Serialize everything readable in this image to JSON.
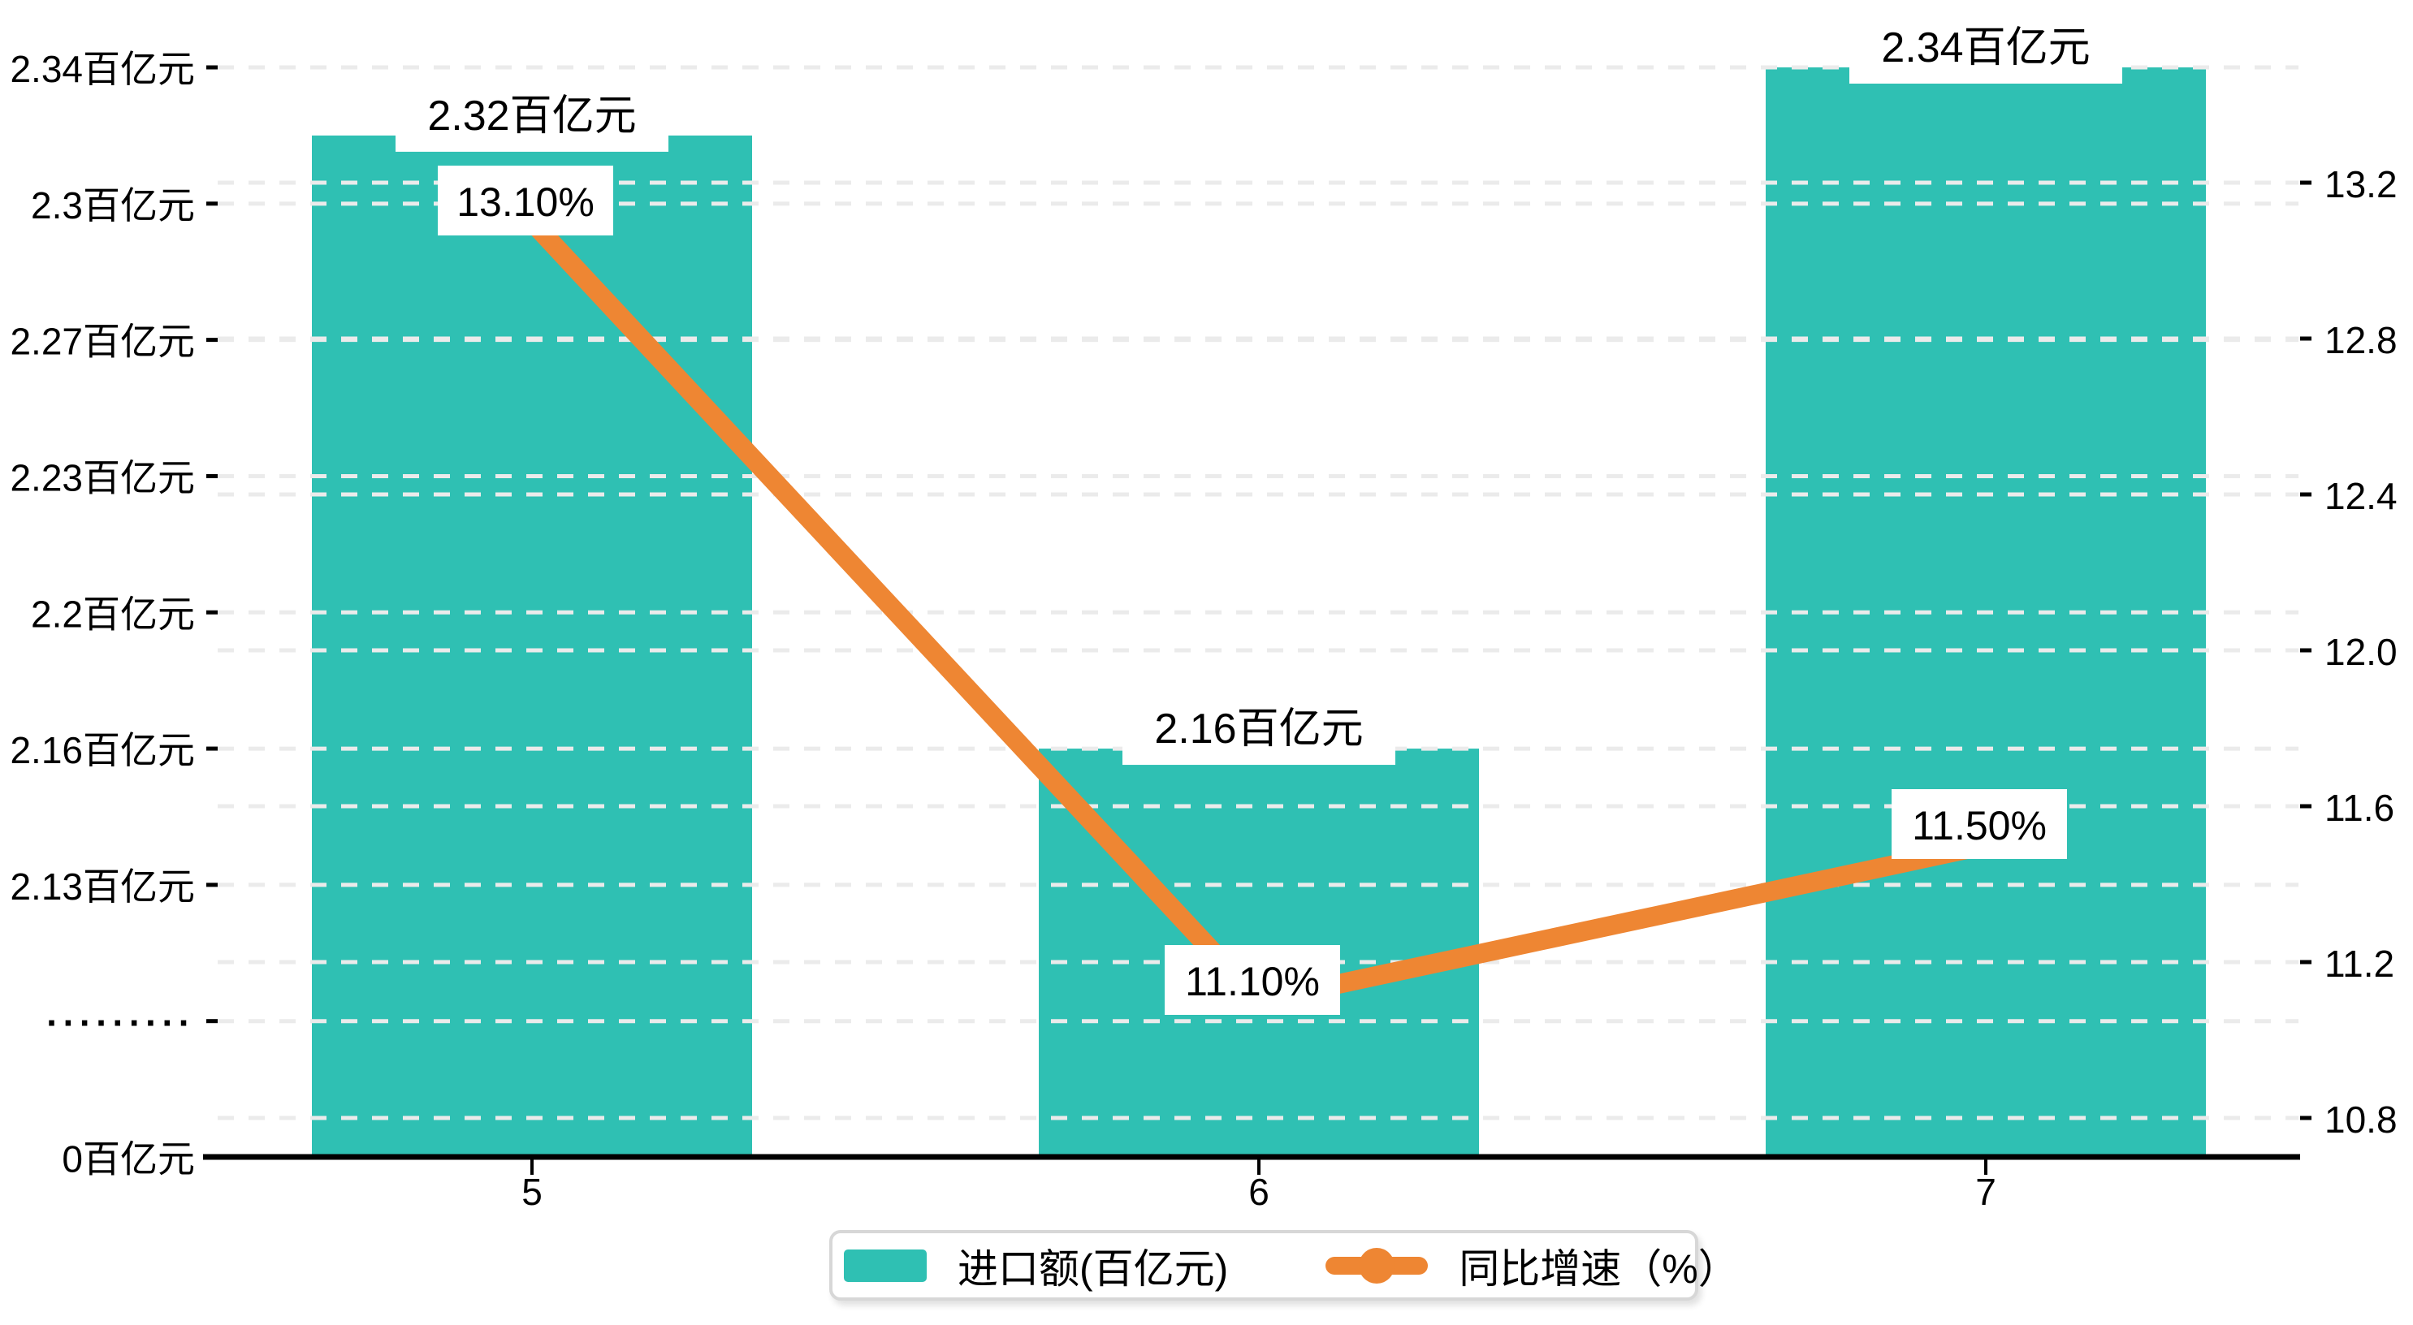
{
  "chart_data": {
    "type": "bar",
    "title": "",
    "categories": [
      "5",
      "6",
      "7"
    ],
    "series": [
      {
        "name": "进口额(百亿元)",
        "type": "bar",
        "axis": "left",
        "values": [
          2.32,
          2.16,
          2.34
        ],
        "value_labels": [
          "2.32百亿元",
          "2.16百亿元",
          "2.34百亿元"
        ],
        "color": "#2fc0b3"
      },
      {
        "name": "同比增速（%）",
        "type": "line",
        "axis": "right",
        "values": [
          13.1,
          11.1,
          11.5
        ],
        "value_labels": [
          "13.10%",
          "11.10%",
          "11.50%"
        ],
        "color": "#ee8633"
      }
    ],
    "left_axis": {
      "tick_labels": [
        "0百亿元",
        "·········",
        "2.13百亿元",
        "2.16百亿元",
        "2.2百亿元",
        "2.23百亿元",
        "2.27百亿元",
        "2.3百亿元",
        "2.34百亿元"
      ],
      "tick_values": [
        0,
        null,
        2.13,
        2.16,
        2.2,
        2.23,
        2.27,
        2.3,
        2.34
      ],
      "broken_scale": true
    },
    "right_axis": {
      "tick_labels": [
        "10.8",
        "11.2",
        "11.6",
        "12.0",
        "12.4",
        "12.8",
        "13.2"
      ],
      "tick_values": [
        10.8,
        11.2,
        11.6,
        12.0,
        12.4,
        12.8,
        13.2
      ],
      "min": 10.8,
      "max": 13.2
    },
    "grid": "dashed horizontal lines for every tick of both axes",
    "legend": {
      "position": "bottom-center",
      "items": [
        {
          "label": "进口额(百亿元)",
          "icon": "bar-swatch",
          "color": "#2fc0b3"
        },
        {
          "label": "同比增速（%）",
          "icon": "line-dot",
          "color": "#ee8633"
        }
      ]
    },
    "colors": {
      "bar": "#2fc0b3",
      "line": "#ee8633",
      "gridline": "#ebebeb",
      "axis_line": "#000000",
      "text": "#000000",
      "label_background": "#ffffff"
    }
  }
}
